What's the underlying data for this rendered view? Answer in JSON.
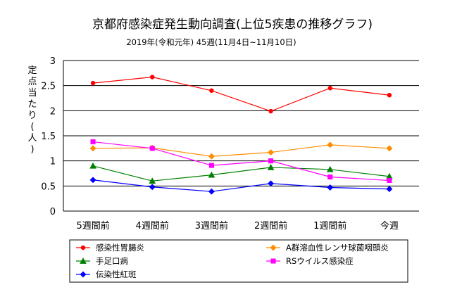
{
  "title": "京都府感染症発生動向調査(上位5疾患の推移グラフ)",
  "subtitle": "2019年(令和元年) 45週(11月4日~11月10日)",
  "chart_data": {
    "type": "line",
    "title": "京都府感染症発生動向調査(上位5疾患の推移グラフ)",
    "subtitle": "2019年(令和元年) 45週(11月4日~11月10日)",
    "ylabel": "定点当たり(人)",
    "xlabel": "",
    "categories": [
      "5週間前",
      "4週間前",
      "3週間前",
      "2週間前",
      "1週間前",
      "今週"
    ],
    "ylim": [
      0,
      3
    ],
    "yticks": [
      "0",
      "0.5",
      "1",
      "1.5",
      "2",
      "2.5",
      "3"
    ],
    "grid": "horizontal",
    "legend_position": "bottom",
    "series": [
      {
        "name": "感染性胃腸炎",
        "color": "#ff0000",
        "marker": "circle",
        "values": [
          2.55,
          2.67,
          2.4,
          1.99,
          2.45,
          2.31
        ]
      },
      {
        "name": "A群溶血性レンサ球菌咽頭炎",
        "color": "#ff8c00",
        "marker": "diamond",
        "values": [
          1.25,
          1.26,
          1.09,
          1.17,
          1.32,
          1.25
        ]
      },
      {
        "name": "手足口病",
        "color": "#008000",
        "marker": "triangle",
        "values": [
          0.9,
          0.6,
          0.72,
          0.87,
          0.83,
          0.69
        ]
      },
      {
        "name": "RSウイルス感染症",
        "color": "#ff00ff",
        "marker": "square",
        "values": [
          1.38,
          1.25,
          0.91,
          1.0,
          0.68,
          0.61
        ]
      },
      {
        "name": "伝染性紅斑",
        "color": "#0000ff",
        "marker": "diamond",
        "values": [
          0.62,
          0.48,
          0.39,
          0.55,
          0.47,
          0.44
        ]
      }
    ]
  }
}
